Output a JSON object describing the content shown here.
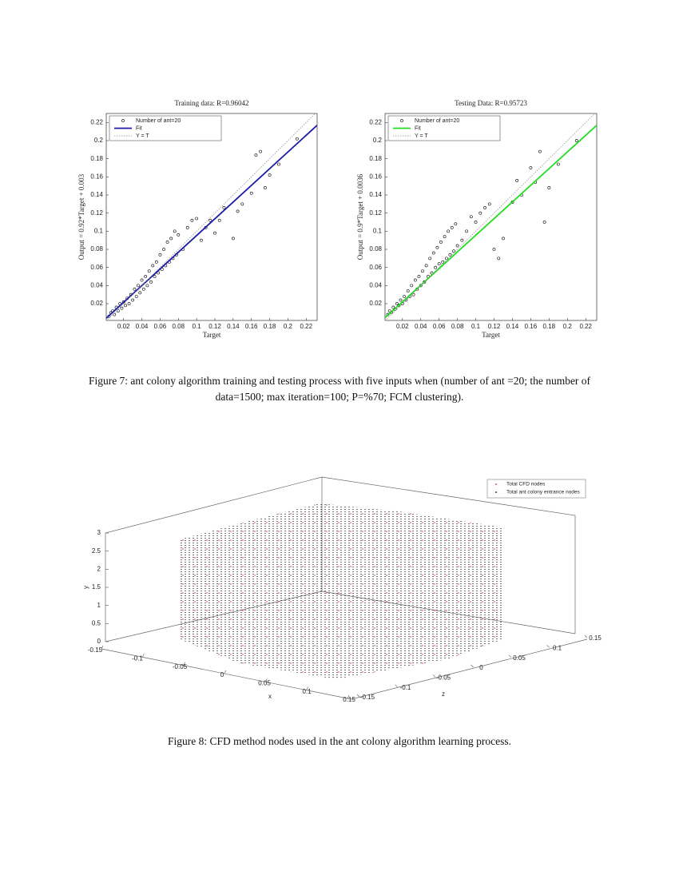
{
  "chart_data": [
    {
      "type": "scatter",
      "title": "Training data: R=0.96042",
      "xlabel": "Target",
      "ylabel": "Output  = 0.92*Target + 0.003",
      "xlim": [
        0.001,
        0.232
      ],
      "ylim": [
        0.0015,
        0.23
      ],
      "xticks": [
        0.02,
        0.04,
        0.06,
        0.08,
        0.1,
        0.12,
        0.14,
        0.16,
        0.18,
        0.2,
        0.22
      ],
      "yticks": [
        0.02,
        0.04,
        0.06,
        0.08,
        0.1,
        0.12,
        0.14,
        0.16,
        0.18,
        0.2,
        0.22
      ],
      "legend": "upper left",
      "series": [
        {
          "name": "Number of ant=20",
          "style": "circles",
          "color": "#000000",
          "x": [
            0.004,
            0.006,
            0.008,
            0.01,
            0.012,
            0.014,
            0.016,
            0.018,
            0.02,
            0.022,
            0.024,
            0.026,
            0.028,
            0.03,
            0.032,
            0.034,
            0.036,
            0.038,
            0.04,
            0.042,
            0.044,
            0.046,
            0.048,
            0.05,
            0.052,
            0.054,
            0.056,
            0.058,
            0.06,
            0.062,
            0.064,
            0.066,
            0.068,
            0.07,
            0.072,
            0.074,
            0.076,
            0.078,
            0.08,
            0.085,
            0.09,
            0.095,
            0.1,
            0.105,
            0.11,
            0.115,
            0.12,
            0.125,
            0.13,
            0.14,
            0.145,
            0.15,
            0.16,
            0.165,
            0.17,
            0.175,
            0.18,
            0.19,
            0.21,
            0.235
          ],
          "values": [
            0.006,
            0.01,
            0.012,
            0.008,
            0.016,
            0.012,
            0.02,
            0.015,
            0.022,
            0.018,
            0.026,
            0.02,
            0.03,
            0.024,
            0.036,
            0.028,
            0.04,
            0.032,
            0.046,
            0.036,
            0.05,
            0.04,
            0.056,
            0.044,
            0.062,
            0.05,
            0.066,
            0.054,
            0.074,
            0.058,
            0.08,
            0.062,
            0.088,
            0.066,
            0.092,
            0.07,
            0.1,
            0.074,
            0.096,
            0.08,
            0.104,
            0.112,
            0.114,
            0.09,
            0.104,
            0.112,
            0.098,
            0.112,
            0.126,
            0.092,
            0.122,
            0.13,
            0.142,
            0.184,
            0.188,
            0.148,
            0.162,
            0.174,
            0.202,
            0.218
          ]
        },
        {
          "name": "Fit",
          "style": "solid",
          "color": "#1c1ca8",
          "x": [
            0.001,
            0.232
          ],
          "values": [
            0.004,
            0.217
          ]
        },
        {
          "name": "Y = T",
          "style": "dotted",
          "color": "#888888",
          "x": [
            0.001,
            0.232
          ],
          "values": [
            0.001,
            0.232
          ]
        }
      ]
    },
    {
      "type": "scatter",
      "title": "Testing Data: R=0.95723",
      "xlabel": "Target",
      "ylabel": "Output  = 0.9*Target + 0.0036",
      "xlim": [
        0.001,
        0.232
      ],
      "ylim": [
        0.0015,
        0.23
      ],
      "xticks": [
        0.02,
        0.04,
        0.06,
        0.08,
        0.1,
        0.12,
        0.14,
        0.16,
        0.18,
        0.2,
        0.22
      ],
      "yticks": [
        0.02,
        0.04,
        0.06,
        0.08,
        0.1,
        0.12,
        0.14,
        0.16,
        0.18,
        0.2,
        0.22
      ],
      "legend": "upper left",
      "series": [
        {
          "name": "Number of ant=20",
          "style": "circles",
          "color": "#000000",
          "x": [
            0.004,
            0.006,
            0.008,
            0.01,
            0.012,
            0.014,
            0.016,
            0.018,
            0.02,
            0.022,
            0.024,
            0.026,
            0.028,
            0.03,
            0.032,
            0.034,
            0.036,
            0.038,
            0.04,
            0.042,
            0.044,
            0.046,
            0.048,
            0.05,
            0.052,
            0.054,
            0.056,
            0.058,
            0.06,
            0.062,
            0.064,
            0.066,
            0.068,
            0.07,
            0.072,
            0.074,
            0.076,
            0.078,
            0.08,
            0.085,
            0.09,
            0.095,
            0.1,
            0.105,
            0.11,
            0.115,
            0.12,
            0.125,
            0.13,
            0.14,
            0.145,
            0.15,
            0.16,
            0.165,
            0.17,
            0.175,
            0.18,
            0.19,
            0.21,
            0.235
          ],
          "values": [
            0.008,
            0.012,
            0.01,
            0.016,
            0.014,
            0.02,
            0.018,
            0.024,
            0.02,
            0.028,
            0.024,
            0.034,
            0.028,
            0.04,
            0.03,
            0.046,
            0.036,
            0.05,
            0.04,
            0.056,
            0.044,
            0.062,
            0.05,
            0.07,
            0.054,
            0.076,
            0.06,
            0.082,
            0.064,
            0.088,
            0.066,
            0.094,
            0.07,
            0.1,
            0.074,
            0.104,
            0.078,
            0.108,
            0.084,
            0.09,
            0.1,
            0.116,
            0.11,
            0.12,
            0.126,
            0.13,
            0.08,
            0.07,
            0.092,
            0.132,
            0.156,
            0.14,
            0.17,
            0.154,
            0.188,
            0.11,
            0.148,
            0.174,
            0.2,
            0.218
          ]
        },
        {
          "name": "Fit",
          "style": "solid",
          "color": "#22dd22",
          "x": [
            0.001,
            0.232
          ],
          "values": [
            0.0045,
            0.217
          ]
        },
        {
          "name": "Y = T",
          "style": "dotted",
          "color": "#888888",
          "x": [
            0.001,
            0.232
          ],
          "values": [
            0.001,
            0.232
          ]
        }
      ]
    },
    {
      "type": "scatter3d",
      "xlabel": "x",
      "zlabel": "z",
      "ylabel": "y",
      "xlim": [
        -0.15,
        0.15
      ],
      "zlim": [
        -0.15,
        0.15
      ],
      "ylim": [
        0,
        3
      ],
      "xticks": [
        -0.15,
        -0.1,
        -0.05,
        0,
        0.05,
        0.1,
        0.15
      ],
      "zticks": [
        -0.15,
        -0.1,
        -0.05,
        0,
        0.05,
        0.1,
        0.15
      ],
      "yticks": [
        0,
        0.5,
        1,
        1.5,
        2,
        2.5,
        3
      ],
      "legend": "upper right",
      "series": [
        {
          "name": "Total CFD nodes",
          "color": "#e02020"
        },
        {
          "name": "Total ant colony entrance nodes",
          "color": "#000000"
        }
      ]
    }
  ],
  "figure7_caption": "Figure 7: ant colony algorithm training and testing process with five inputs when (number of ant =20; the number of data=1500; max iteration=100; P=%70; FCM clustering).",
  "figure8_caption": "Figure 8: CFD method nodes used in the ant colony algorithm learning process."
}
